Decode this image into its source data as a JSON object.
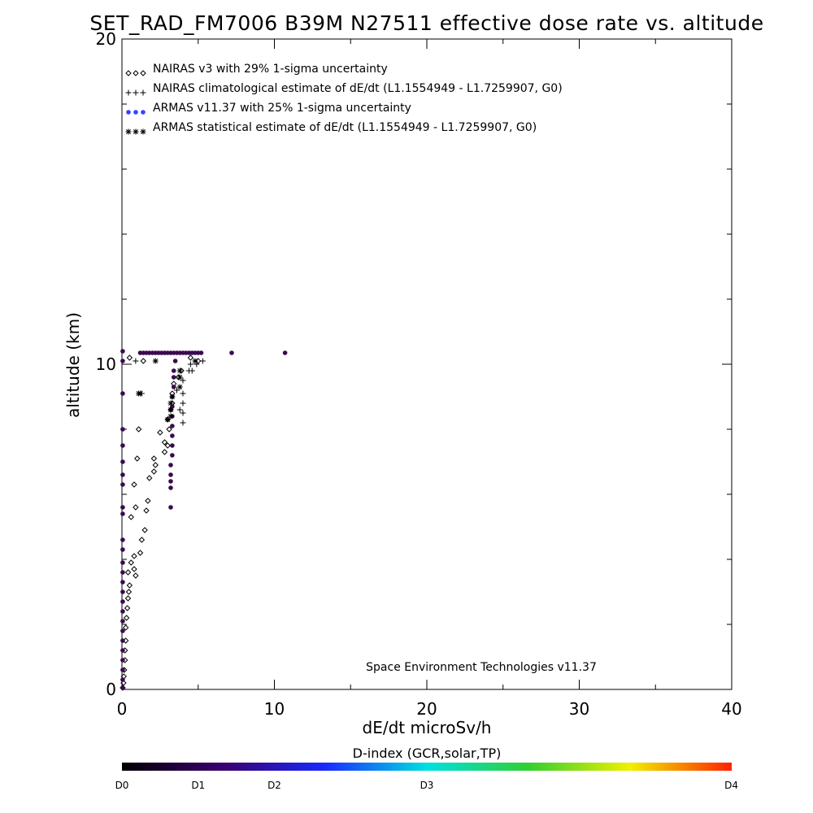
{
  "chart_data": {
    "type": "scatter",
    "title": "SET_RAD_FM7006  B39M N27511 effective dose rate vs. altitude",
    "xlabel": "dE/dt microSv/h",
    "ylabel": "altitude (km)",
    "xlim": [
      0,
      40
    ],
    "ylim": [
      0,
      20
    ],
    "x_ticks": [
      0,
      10,
      20,
      30,
      40
    ],
    "y_ticks": [
      0,
      10,
      20
    ],
    "x_minor_ticks": [
      5,
      15,
      25,
      35
    ],
    "y_minor_ticks": [
      2,
      4,
      6,
      8,
      12,
      14,
      16,
      18
    ],
    "grid": false,
    "legend_placement": "top-left",
    "credit": "Space Environment Technologies v11.37",
    "series": [
      {
        "name": "NAIRAS v3 with 29% 1-sigma uncertainty",
        "marker": "diamond",
        "color": "#000000",
        "points": [
          [
            0.05,
            0.05
          ],
          [
            0.1,
            0.2
          ],
          [
            0.12,
            0.4
          ],
          [
            0.15,
            0.6
          ],
          [
            0.2,
            0.9
          ],
          [
            0.2,
            1.2
          ],
          [
            0.25,
            1.5
          ],
          [
            0.25,
            1.9
          ],
          [
            0.3,
            2.2
          ],
          [
            0.35,
            2.5
          ],
          [
            0.4,
            2.8
          ],
          [
            0.45,
            3.0
          ],
          [
            0.5,
            3.2
          ],
          [
            0.4,
            3.6
          ],
          [
            0.6,
            3.9
          ],
          [
            0.8,
            3.7
          ],
          [
            0.9,
            3.5
          ],
          [
            0.8,
            4.1
          ],
          [
            1.2,
            4.2
          ],
          [
            1.3,
            4.6
          ],
          [
            1.5,
            4.9
          ],
          [
            0.6,
            5.3
          ],
          [
            1.6,
            5.5
          ],
          [
            1.7,
            5.8
          ],
          [
            0.9,
            5.6
          ],
          [
            0.8,
            6.3
          ],
          [
            1.8,
            6.5
          ],
          [
            2.1,
            6.7
          ],
          [
            2.2,
            6.9
          ],
          [
            2.1,
            7.1
          ],
          [
            2.8,
            7.3
          ],
          [
            2.5,
            7.9
          ],
          [
            1.0,
            7.1
          ],
          [
            2.8,
            7.6
          ],
          [
            3.0,
            7.5
          ],
          [
            3.1,
            8.0
          ],
          [
            3.0,
            8.3
          ],
          [
            1.1,
            8.0
          ],
          [
            3.2,
            8.6
          ],
          [
            3.3,
            8.8
          ],
          [
            3.3,
            9.1
          ],
          [
            3.4,
            9.4
          ],
          [
            3.7,
            9.6
          ],
          [
            3.9,
            9.8
          ],
          [
            5.0,
            10.1
          ],
          [
            4.5,
            10.2
          ],
          [
            1.4,
            10.1
          ],
          [
            0.5,
            10.2
          ]
        ]
      },
      {
        "name": "NAIRAS climatological estimate of dE/dt (L1.1554949 - L1.7259907, G0)",
        "marker": "plus",
        "color": "#000000",
        "points": [
          [
            0.9,
            10.1
          ],
          [
            1.3,
            9.1
          ],
          [
            4.0,
            8.2
          ],
          [
            4.0,
            8.5
          ],
          [
            4.0,
            8.8
          ],
          [
            4.0,
            9.1
          ],
          [
            4.0,
            9.5
          ],
          [
            4.6,
            9.8
          ],
          [
            4.4,
            9.8
          ],
          [
            4.5,
            10.0
          ],
          [
            4.9,
            10.0
          ],
          [
            5.3,
            10.1
          ],
          [
            3.6,
            9.2
          ],
          [
            3.8,
            8.6
          ]
        ]
      },
      {
        "name": "ARMAS v11.37 with 25% 1-sigma uncertainty",
        "marker": "dot",
        "color": "#3344ff",
        "points": [
          [
            1.2,
            10.35
          ],
          [
            1.4,
            10.35
          ],
          [
            1.6,
            10.35
          ],
          [
            1.8,
            10.35
          ],
          [
            2.0,
            10.35
          ],
          [
            2.2,
            10.35
          ],
          [
            2.4,
            10.35
          ],
          [
            2.6,
            10.35
          ],
          [
            2.8,
            10.35
          ],
          [
            3.0,
            10.35
          ],
          [
            3.2,
            10.35
          ],
          [
            3.4,
            10.35
          ],
          [
            3.6,
            10.35
          ],
          [
            3.8,
            10.35
          ],
          [
            4.0,
            10.35
          ],
          [
            4.2,
            10.35
          ],
          [
            4.4,
            10.35
          ],
          [
            4.6,
            10.35
          ],
          [
            4.8,
            10.35
          ],
          [
            5.0,
            10.35
          ],
          [
            5.2,
            10.35
          ],
          [
            7.2,
            10.35
          ],
          [
            10.7,
            10.35
          ],
          [
            3.5,
            10.1
          ],
          [
            3.4,
            9.8
          ],
          [
            3.4,
            9.6
          ],
          [
            3.4,
            9.3
          ],
          [
            3.3,
            9.0
          ],
          [
            3.3,
            8.7
          ],
          [
            3.3,
            8.4
          ],
          [
            3.3,
            8.1
          ],
          [
            3.3,
            7.8
          ],
          [
            3.3,
            7.5
          ],
          [
            3.3,
            7.2
          ],
          [
            3.2,
            6.9
          ],
          [
            3.2,
            6.6
          ],
          [
            3.2,
            6.4
          ],
          [
            3.2,
            6.2
          ],
          [
            3.2,
            5.6
          ],
          [
            0.05,
            10.4
          ],
          [
            0.05,
            10.1
          ],
          [
            0.05,
            9.1
          ],
          [
            0.05,
            8.0
          ],
          [
            0.05,
            7.5
          ],
          [
            0.05,
            7.0
          ],
          [
            0.05,
            6.6
          ],
          [
            0.05,
            6.3
          ],
          [
            0.05,
            5.6
          ],
          [
            0.05,
            5.4
          ],
          [
            0.05,
            4.6
          ],
          [
            0.05,
            4.3
          ],
          [
            0.05,
            3.9
          ],
          [
            0.05,
            3.6
          ],
          [
            0.05,
            3.3
          ],
          [
            0.05,
            3.0
          ],
          [
            0.05,
            2.7
          ],
          [
            0.05,
            2.4
          ],
          [
            0.05,
            2.1
          ],
          [
            0.05,
            1.8
          ],
          [
            0.05,
            1.5
          ],
          [
            0.05,
            1.2
          ],
          [
            0.05,
            0.9
          ],
          [
            0.05,
            0.6
          ],
          [
            0.05,
            0.3
          ],
          [
            0.05,
            0.05
          ]
        ]
      },
      {
        "name": "ARMAS statistical estimate of dE/dt (L1.1554949 - L1.7259907, G0)",
        "marker": "asterisk",
        "color": "#000000",
        "points": [
          [
            2.2,
            10.1
          ],
          [
            3.8,
            9.8
          ],
          [
            3.8,
            9.6
          ],
          [
            3.8,
            9.3
          ],
          [
            3.3,
            9.0
          ],
          [
            3.2,
            8.8
          ],
          [
            3.2,
            8.6
          ],
          [
            3.2,
            8.4
          ],
          [
            1.1,
            9.1
          ],
          [
            1.2,
            9.1
          ],
          [
            4.8,
            10.1
          ],
          [
            3.0,
            8.3
          ]
        ]
      }
    ],
    "colorbar": {
      "title": "D-index (GCR,solar,TP)",
      "labels": [
        "D0",
        "D1",
        "D2",
        "D3",
        "D4"
      ],
      "label_positions": [
        0,
        0.125,
        0.25,
        0.5,
        1.0
      ],
      "colors": [
        "#000000",
        "#3a0070",
        "#1a2aff",
        "#00e0e0",
        "#30d030",
        "#f0f000",
        "#ff2000"
      ]
    }
  }
}
